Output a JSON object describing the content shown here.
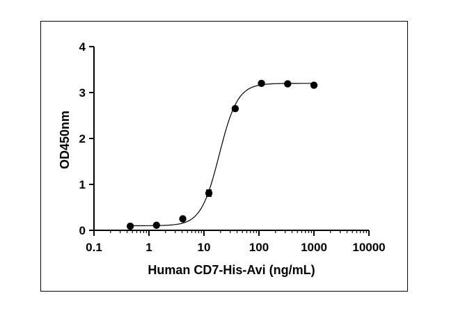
{
  "chart_data": {
    "type": "scatter",
    "title": "",
    "xlabel": "Human CD7-His-Avi (ng/mL)",
    "ylabel": "OD450nm",
    "xscale": "log",
    "xlim": [
      0.1,
      10000
    ],
    "ylim": [
      0,
      4
    ],
    "x_ticks": [
      0.1,
      1,
      10,
      100,
      1000,
      10000
    ],
    "x_tick_labels": [
      "0.1",
      "1",
      "10",
      "100",
      "1000",
      "10000"
    ],
    "y_ticks": [
      0,
      1,
      2,
      3,
      4
    ],
    "y_tick_labels": [
      "0",
      "1",
      "2",
      "3",
      "4"
    ],
    "grid": false,
    "legend": "none",
    "marker_color": "#000000",
    "series": [
      {
        "points": [
          {
            "x": 0.457,
            "y": 0.09
          },
          {
            "x": 1.37,
            "y": 0.11
          },
          {
            "x": 4.12,
            "y": 0.25
          },
          {
            "x": 12.3,
            "y": 0.81
          },
          {
            "x": 37.0,
            "y": 2.65
          },
          {
            "x": 111,
            "y": 3.2
          },
          {
            "x": 333,
            "y": 3.19
          },
          {
            "x": 1000,
            "y": 3.16
          }
        ],
        "error": [
          0,
          0,
          0,
          0.07,
          0,
          0,
          0,
          0
        ]
      }
    ],
    "fit_curve": {
      "model": "4PL",
      "bottom": 0.1,
      "top": 3.2,
      "ec50": 19,
      "hill": 2.6,
      "x_range": [
        0.457,
        1000
      ]
    }
  }
}
